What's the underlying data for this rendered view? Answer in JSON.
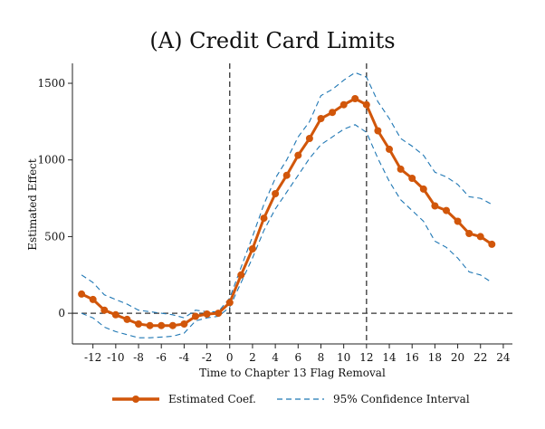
{
  "chart_data": {
    "type": "line",
    "title": "(A) Credit Card Limits",
    "xlabel": "Time to Chapter 13 Flag Removal",
    "ylabel": "Estimated Effect",
    "xlim": [
      -13.8,
      24.8
    ],
    "ylim": [
      -200,
      1630
    ],
    "x_ticks": [
      -12,
      -10,
      -8,
      -6,
      -4,
      -2,
      0,
      2,
      4,
      6,
      8,
      10,
      12,
      14,
      16,
      18,
      20,
      22,
      24
    ],
    "y_ticks": [
      0,
      500,
      1000,
      1500
    ],
    "grid": false,
    "reference_lines": {
      "vertical": [
        0,
        12
      ],
      "horizontal": [
        0
      ]
    },
    "legend_position": "bottom",
    "colors": {
      "coef": "#d1560a",
      "ci": "#1f77b4",
      "ref": "#333333"
    },
    "x": [
      -13,
      -12,
      -11,
      -10,
      -9,
      -8,
      -7,
      -6,
      -5,
      -4,
      -3,
      -2,
      -1,
      0,
      1,
      2,
      3,
      4,
      5,
      6,
      7,
      8,
      9,
      10,
      11,
      12,
      13,
      14,
      15,
      16,
      17,
      18,
      19,
      20,
      21,
      22,
      23
    ],
    "series": [
      {
        "name": "Estimated Coef.",
        "style": "line-markers",
        "values": [
          125,
          90,
          20,
          -10,
          -40,
          -70,
          -80,
          -80,
          -80,
          -70,
          -20,
          -5,
          0,
          70,
          250,
          420,
          620,
          780,
          900,
          1030,
          1140,
          1270,
          1310,
          1360,
          1400,
          1360,
          1190,
          1070,
          940,
          880,
          810,
          700,
          670,
          600,
          520,
          500,
          450
        ]
      },
      {
        "name": "95% Confidence Interval",
        "style": "dashed",
        "values": [
          250,
          200,
          120,
          90,
          60,
          20,
          10,
          0,
          -10,
          -30,
          20,
          10,
          10,
          100,
          300,
          500,
          710,
          880,
          1000,
          1150,
          1250,
          1420,
          1460,
          1520,
          1570,
          1540,
          1380,
          1270,
          1140,
          1090,
          1030,
          920,
          890,
          840,
          760,
          750,
          710
        ]
      },
      {
        "name": "",
        "style": "dashed",
        "values": [
          0,
          -30,
          -90,
          -120,
          -140,
          -160,
          -160,
          -155,
          -150,
          -130,
          -50,
          -30,
          -20,
          40,
          200,
          360,
          540,
          680,
          790,
          900,
          1010,
          1100,
          1150,
          1200,
          1230,
          1180,
          1010,
          860,
          740,
          670,
          600,
          470,
          430,
          360,
          270,
          250,
          200
        ]
      }
    ]
  }
}
